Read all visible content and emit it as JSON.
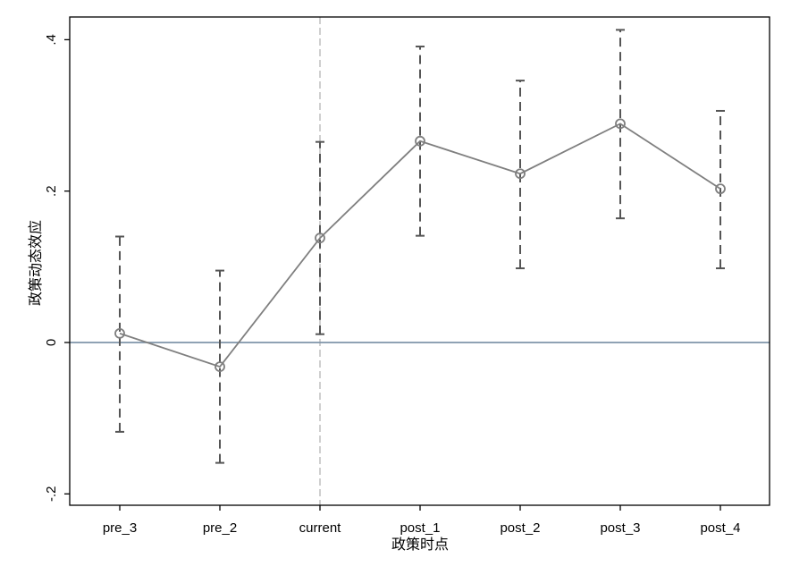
{
  "chart_data": {
    "type": "line",
    "title": "",
    "xlabel": "政策时点",
    "ylabel": "政策动态效应",
    "categories": [
      "pre_3",
      "pre_2",
      "current",
      "post_1",
      "post_2",
      "post_3",
      "post_4"
    ],
    "series": [
      {
        "values": [
          0.012,
          -0.032,
          0.138,
          0.266,
          0.223,
          0.289,
          0.203
        ],
        "ci_low": [
          -0.118,
          -0.159,
          0.011,
          0.141,
          0.098,
          0.164,
          0.098
        ],
        "ci_high": [
          0.14,
          0.095,
          0.265,
          0.391,
          0.346,
          0.413,
          0.306
        ]
      }
    ],
    "ylim": [
      -0.215,
      0.43
    ],
    "yticks": [
      {
        "value": -0.2,
        "label": "-.2"
      },
      {
        "value": 0,
        "label": "0"
      },
      {
        "value": 0.2,
        "label": ".2"
      },
      {
        "value": 0.4,
        "label": ".4"
      }
    ],
    "reference_line_y": 0,
    "reference_line_x_category": "current",
    "grid": false,
    "legend": "none",
    "colors": {
      "series": "#7f7f7f",
      "ci": "#555555",
      "zero_line": "#7f95aa",
      "vline": "#b5b5b5",
      "frame": "#000000"
    }
  }
}
